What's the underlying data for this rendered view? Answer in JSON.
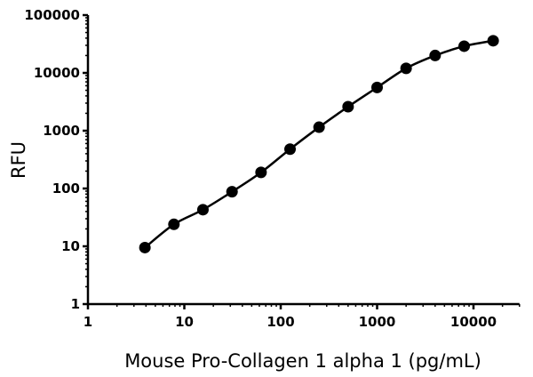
{
  "chart_data": {
    "type": "scatter",
    "title": "",
    "xlabel": "Mouse Pro-Collagen 1 alpha 1 (pg/mL)",
    "ylabel": "RFU",
    "x_scale": "log",
    "y_scale": "log",
    "xlim": [
      1,
      30000
    ],
    "ylim": [
      1,
      100000
    ],
    "x_ticks": [
      "1",
      "10",
      "100",
      "1000",
      "10000"
    ],
    "y_ticks": [
      "1",
      "10",
      "100",
      "1000",
      "10000",
      "100000"
    ],
    "grid": false,
    "legend": "none",
    "series": [
      {
        "x": [
          3.9,
          7.8,
          15.6,
          31.25,
          62.5,
          125,
          250,
          500,
          1000,
          2000,
          4000,
          8000,
          16000
        ],
        "y": [
          9.5,
          24,
          43,
          88,
          190,
          480,
          1150,
          2600,
          5600,
          12000,
          20000,
          29000,
          36000
        ],
        "marker": "circle",
        "fit_curve": true
      }
    ],
    "color": "#000000"
  }
}
